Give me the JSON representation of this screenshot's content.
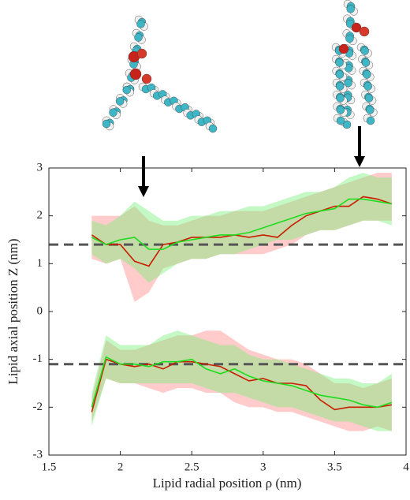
{
  "chart_data": {
    "type": "line",
    "xlabel": "Lipid radial position ρ (nm)",
    "ylabel": "Lipid axial position Z (nm)",
    "x": [
      1.8,
      1.9,
      2.0,
      2.1,
      2.2,
      2.3,
      2.4,
      2.5,
      2.6,
      2.7,
      2.8,
      2.9,
      3.0,
      3.1,
      3.2,
      3.3,
      3.4,
      3.5,
      3.6,
      3.7,
      3.8,
      3.9
    ],
    "series": [
      {
        "color": "#c81e00",
        "band_color": "#ff8c8c",
        "values": [
          1.6,
          1.4,
          1.4,
          1.05,
          0.95,
          1.4,
          1.45,
          1.55,
          1.55,
          1.55,
          1.6,
          1.55,
          1.6,
          1.55,
          1.8,
          2.0,
          2.1,
          2.2,
          2.2,
          2.4,
          2.35,
          2.25
        ],
        "lower": [
          1.1,
          1.0,
          1.1,
          0.2,
          0.4,
          0.9,
          1.0,
          1.1,
          1.1,
          1.2,
          1.2,
          1.2,
          1.2,
          1.3,
          1.4,
          1.6,
          1.7,
          1.7,
          1.8,
          1.9,
          1.9,
          1.9
        ],
        "upper": [
          2.0,
          2.0,
          2.0,
          2.2,
          1.9,
          1.8,
          1.8,
          1.9,
          2.0,
          2.0,
          2.1,
          2.1,
          2.1,
          2.2,
          2.3,
          2.4,
          2.5,
          2.6,
          2.7,
          2.8,
          2.9,
          2.9
        ]
      },
      {
        "color": "#1edc1e",
        "band_color": "#7cf07c",
        "values": [
          1.55,
          1.4,
          1.5,
          1.55,
          1.3,
          1.3,
          1.45,
          1.5,
          1.55,
          1.6,
          1.6,
          1.65,
          1.75,
          1.85,
          1.95,
          2.05,
          2.1,
          2.15,
          2.35,
          2.35,
          2.3,
          2.25
        ],
        "lower": [
          1.2,
          1.0,
          1.1,
          0.9,
          0.6,
          0.8,
          1.0,
          1.1,
          1.1,
          1.2,
          1.2,
          1.3,
          1.4,
          1.5,
          1.5,
          1.6,
          1.7,
          1.7,
          1.8,
          1.9,
          1.9,
          1.8
        ],
        "upper": [
          1.9,
          1.8,
          2.0,
          2.3,
          2.1,
          1.9,
          1.9,
          2.0,
          2.0,
          2.1,
          2.1,
          2.2,
          2.2,
          2.3,
          2.4,
          2.5,
          2.5,
          2.6,
          2.8,
          2.9,
          2.8,
          2.8
        ]
      },
      {
        "color": "#c81e00",
        "band_color": "#ff8c8c",
        "values": [
          -2.1,
          -1.0,
          -1.1,
          -1.15,
          -1.1,
          -1.2,
          -1.05,
          -1.05,
          -1.1,
          -1.15,
          -1.3,
          -1.45,
          -1.4,
          -1.5,
          -1.5,
          -1.55,
          -1.85,
          -2.05,
          -2.0,
          -2.0,
          -2.0,
          -1.95
        ],
        "lower": [
          -2.3,
          -1.4,
          -1.5,
          -1.5,
          -1.6,
          -1.7,
          -1.6,
          -1.6,
          -1.7,
          -1.7,
          -1.9,
          -2.0,
          -2.0,
          -2.1,
          -2.1,
          -2.2,
          -2.3,
          -2.4,
          -2.5,
          -2.5,
          -2.4,
          -2.5
        ],
        "upper": [
          -1.8,
          -0.6,
          -0.8,
          -0.8,
          -0.7,
          -0.6,
          -0.5,
          -0.5,
          -0.4,
          -0.4,
          -0.6,
          -0.8,
          -0.9,
          -1.0,
          -1.0,
          -1.1,
          -1.3,
          -1.5,
          -1.5,
          -1.6,
          -1.5,
          -1.4
        ]
      },
      {
        "color": "#1edc1e",
        "band_color": "#7cf07c",
        "values": [
          -2.0,
          -0.95,
          -1.1,
          -1.1,
          -1.15,
          -1.05,
          -1.05,
          -1.0,
          -1.2,
          -1.3,
          -1.2,
          -1.35,
          -1.45,
          -1.5,
          -1.55,
          -1.65,
          -1.75,
          -1.8,
          -1.85,
          -1.95,
          -2.0,
          -1.9
        ],
        "lower": [
          -2.4,
          -1.4,
          -1.5,
          -1.5,
          -1.5,
          -1.5,
          -1.5,
          -1.5,
          -1.6,
          -1.7,
          -1.7,
          -1.8,
          -1.9,
          -2.0,
          -2.0,
          -2.1,
          -2.2,
          -2.3,
          -2.3,
          -2.4,
          -2.5,
          -2.5
        ],
        "upper": [
          -1.7,
          -0.5,
          -0.7,
          -0.7,
          -0.7,
          -0.5,
          -0.4,
          -0.5,
          -0.6,
          -0.7,
          -0.7,
          -0.9,
          -1.0,
          -1.0,
          -1.1,
          -1.2,
          -1.3,
          -1.4,
          -1.4,
          -1.5,
          -1.5,
          -1.3
        ]
      }
    ],
    "hlines": [
      1.4,
      -1.1
    ],
    "hline_color": "#555555",
    "xlim": [
      1.5,
      4
    ],
    "xticks": [
      {
        "value": 1.5,
        "label": "1.5"
      },
      2,
      {
        "value": 2.5,
        "label": "2.5"
      },
      3,
      {
        "value": 3.5,
        "label": "3.5"
      },
      4
    ],
    "ylim": [
      -3,
      3
    ],
    "yticks": [
      -3,
      -2,
      -1,
      0,
      1,
      2,
      3
    ]
  }
}
